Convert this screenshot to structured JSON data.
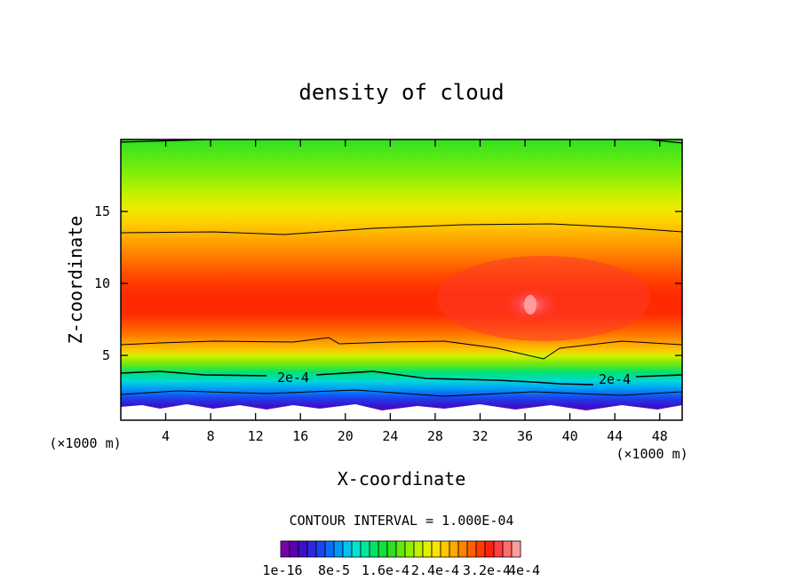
{
  "chart_data": {
    "type": "heatmap",
    "title": "density of cloud",
    "xlabel": "X-coordinate",
    "ylabel": "Z-coordinate",
    "x_unit": "(×1000 m)",
    "y_unit": "(×1000 m)",
    "xlim": [
      0,
      50
    ],
    "ylim": [
      0.5,
      20
    ],
    "x_ticks": [
      "4",
      "8",
      "12",
      "16",
      "20",
      "24",
      "28",
      "32",
      "36",
      "40",
      "44",
      "48"
    ],
    "y_ticks": [
      "5",
      "10",
      "15"
    ],
    "contour_interval_text": "CONTOUR INTERVAL = 1.000E-04",
    "contour_label": "2e-4",
    "colorbar_labels": [
      "1e-16",
      "8e-5",
      "1.6e-4",
      "2.4e-4",
      "3.2e-4",
      "4e-4"
    ],
    "colorbar_colors": [
      "#7a00a8",
      "#5a00b0",
      "#3c10c8",
      "#2c28e0",
      "#1a44f0",
      "#0a6cf8",
      "#0098f8",
      "#00c4f0",
      "#00e4d0",
      "#00e89c",
      "#00e468",
      "#10e038",
      "#30e020",
      "#60e810",
      "#90f000",
      "#bef000",
      "#e4f000",
      "#f8e400",
      "#ffc800",
      "#ffa800",
      "#ff8400",
      "#ff6000",
      "#ff3c00",
      "#ff2010",
      "#ff4040",
      "#ff6c6c",
      "#ff9c9c"
    ]
  }
}
